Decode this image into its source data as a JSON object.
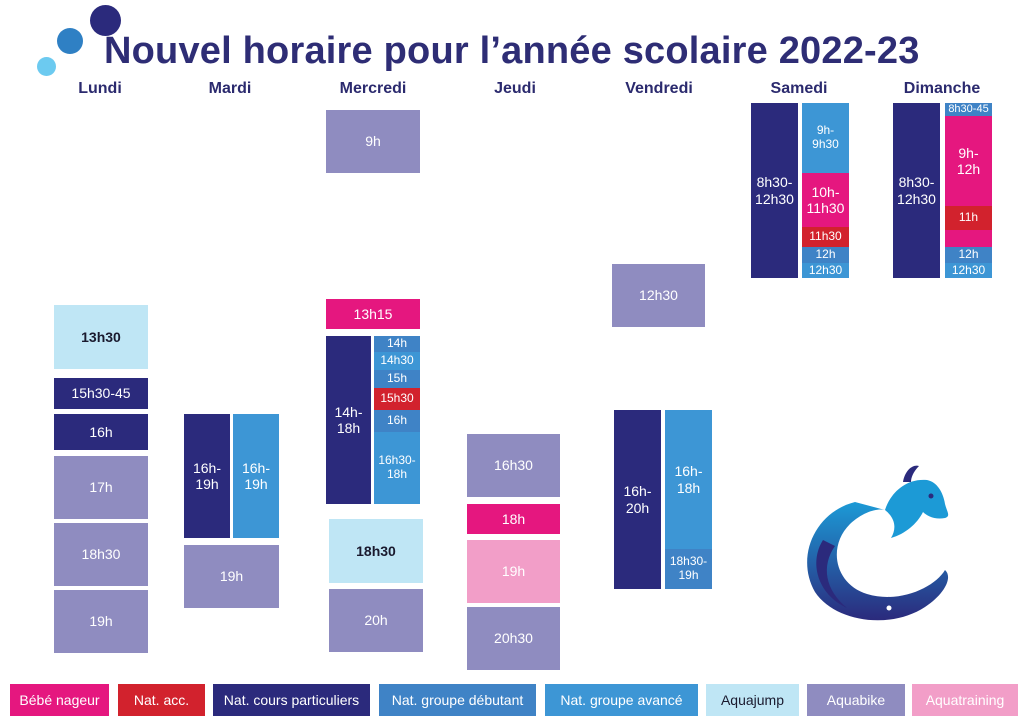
{
  "title": "Nouvel horaire pour l’année scolaire 2022-23",
  "colors": {
    "bebe": "#e5177f",
    "natacc": "#d2222d",
    "particuliers": "#2b2a7c",
    "debutant": "#3f83c6",
    "avance": "#3d96d5",
    "aquajump": "#bfe6f5",
    "aquabike": "#8f8cc0",
    "aquatraining": "#f29ec8"
  },
  "days": {
    "lundi": "Lundi",
    "mardi": "Mardi",
    "mercredi": "Mercredi",
    "jeudi": "Jeudi",
    "vendredi": "Vendredi",
    "samedi": "Samedi",
    "dimanche": "Dimanche"
  },
  "schedule": {
    "lundi": {
      "aquajump": "13h30",
      "particuliers_1": "15h30-45",
      "particuliers_2": "16h",
      "aquabike_1": "17h",
      "aquabike_2": "18h30",
      "aquabike_3": "19h"
    },
    "mardi": {
      "particuliers": "16h-\n19h",
      "avance": "16h-\n19h",
      "aquabike": "19h"
    },
    "mercredi": {
      "aquabike_1": "9h",
      "bebe": "13h15",
      "particuliers": "14h-\n18h",
      "debutant_1": "14h",
      "avance_1": "14h30",
      "debutant_2": "15h",
      "natacc": "15h30",
      "debutant_3": "16h",
      "avance_2": "16h30-\n18h",
      "aquajump": "18h30",
      "aquabike_2": "20h"
    },
    "jeudi": {
      "aquabike_1": "16h30",
      "bebe": "18h",
      "aquatraining": "19h",
      "aquabike_2": "20h30"
    },
    "vendredi": {
      "aquabike": "12h30",
      "particuliers": "16h-\n20h",
      "avance": "16h-\n18h",
      "debutant": "18h30-\n19h"
    },
    "samedi": {
      "particuliers": "8h30-\n12h30",
      "avance": "9h-\n9h30",
      "bebe": "10h-\n11h30",
      "natacc": "11h30",
      "debutant": "12h",
      "avance_2": "12h30"
    },
    "dimanche": {
      "particuliers": "8h30-\n12h30",
      "debutant_1": "8h30-45",
      "bebe": "9h-\n12h",
      "natacc": "11h",
      "debutant_2": "12h",
      "avance": "12h30"
    }
  },
  "legend": [
    "Bébé nageur",
    "Nat. acc.",
    "Nat. cours particuliers",
    "Nat. groupe débutant",
    "Nat. groupe avancé",
    "Aquajump",
    "Aquabike",
    "Aquatraining"
  ]
}
